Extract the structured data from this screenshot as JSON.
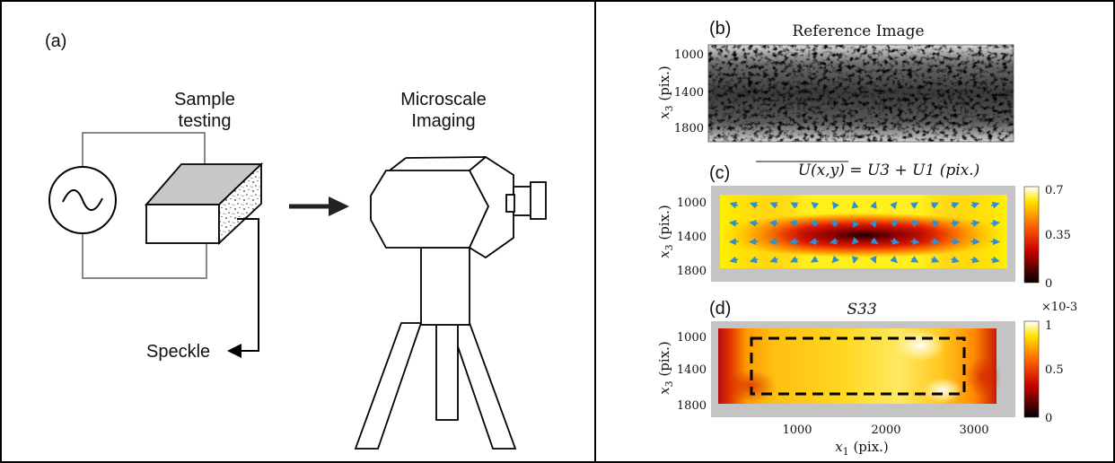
{
  "panel_a": {
    "label": "(a)",
    "sample_title_line1": "Sample",
    "sample_title_line2": "testing",
    "imaging_title_line1": "Microscale",
    "imaging_title_line2": "Imaging",
    "speckle_label": "Speckle"
  },
  "panel_b": {
    "label": "(b)",
    "title": "Reference Image",
    "ylabel": "x3 (pix.)",
    "yticks": [
      "1000",
      "1400",
      "1800"
    ]
  },
  "panel_c": {
    "label": "(c)",
    "title": "U(x,y) = U3 + U1 (pix.)",
    "ylabel": "x3 (pix.)",
    "yticks": [
      "1000",
      "1400",
      "1800"
    ],
    "colorbar_ticks": [
      "0.7",
      "0.35",
      "0"
    ]
  },
  "panel_d": {
    "label": "(d)",
    "title": "S33",
    "ylabel": "x3 (pix.)",
    "yticks": [
      "1000",
      "1400",
      "1800"
    ],
    "xticks": [
      "1000",
      "2000",
      "3000"
    ],
    "xlabel": "x1 (pix.)",
    "colorbar_ticks": [
      "1",
      "0.5",
      "0"
    ],
    "colorbar_exponent": "×10-3"
  },
  "colors": {
    "frame": "#000000",
    "box_top": "#c8c8c8",
    "wire": "#888888",
    "arrow": "#222222",
    "quiver": "#2f8fd0",
    "plot_bg": "#c4c4c4"
  },
  "chart_data": [
    {
      "type": "heatmap",
      "title": "U(x,y) = U3 + U1 (pix.)",
      "ylabel": "x3 (pix.)",
      "yticks": [
        1000,
        1400,
        1800
      ],
      "colorbar_range": [
        0,
        0.7
      ],
      "colorbar_ticks": [
        0,
        0.35,
        0.7
      ],
      "colormap": "hot",
      "minimum_near": [
        1800,
        1450
      ]
    },
    {
      "type": "heatmap",
      "title": "S33",
      "xlabel": "x1 (pix.)",
      "ylabel": "x3 (pix.)",
      "xticks": [
        1000,
        2000,
        3000
      ],
      "yticks": [
        1000,
        1400,
        1800
      ],
      "colorbar_range": [
        0,
        1
      ],
      "colorbar_ticks": [
        0,
        0.5,
        1
      ],
      "colorbar_exponent": "1e-3",
      "colormap": "hot"
    }
  ]
}
